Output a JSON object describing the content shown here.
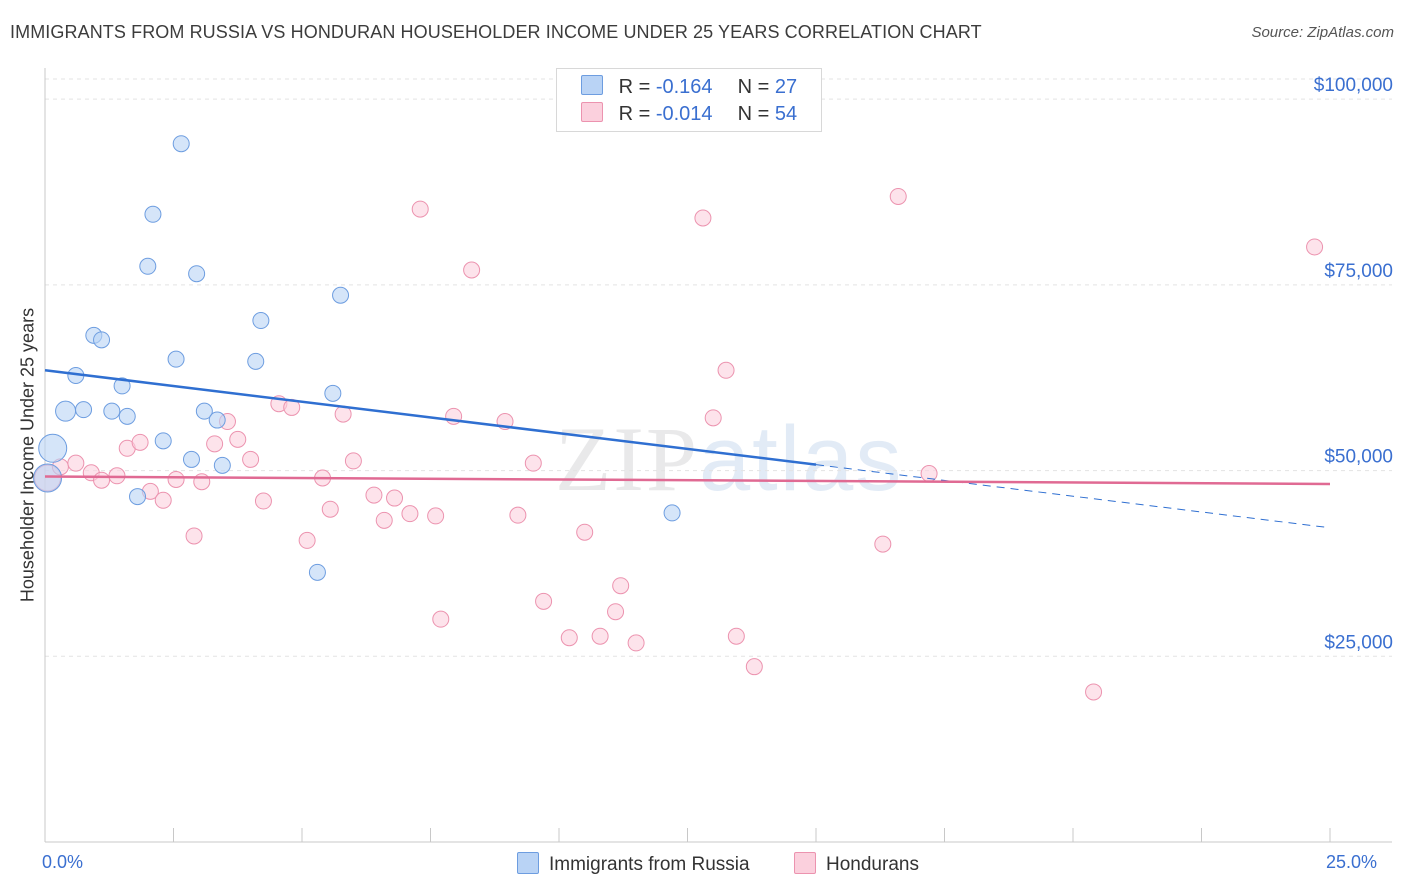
{
  "title": "IMMIGRANTS FROM RUSSIA VS HONDURAN HOUSEHOLDER INCOME UNDER 25 YEARS CORRELATION CHART",
  "source": "Source: ZipAtlas.com",
  "watermark": "ZIPatlas",
  "colors": {
    "russia_fill": "#b9d3f5",
    "russia_stroke": "#6d9de0",
    "russia_line": "#2f6fd1",
    "honduran_fill": "#fbd0dd",
    "honduran_stroke": "#ec93af",
    "honduran_line": "#e06a93",
    "axis_text": "#3a6fd0",
    "grid": "#e3e3e3"
  },
  "legend": {
    "russia": {
      "r_label": "R = ",
      "r_value": "-0.164",
      "n_label": "N = ",
      "n_value": "27"
    },
    "honduran": {
      "r_label": "R = ",
      "r_value": "-0.014",
      "n_label": "N = ",
      "n_value": "54"
    }
  },
  "bottom_legend": {
    "russia": "Immigrants from Russia",
    "honduran": "Hondurans"
  },
  "chart_data": {
    "type": "scatter",
    "title": "IMMIGRANTS FROM RUSSIA VS HONDURAN HOUSEHOLDER INCOME UNDER 25 YEARS CORRELATION CHART",
    "xlabel": "",
    "ylabel": "Householder Income Under 25 years",
    "xlim": [
      0,
      25
    ],
    "ylim": [
      0,
      105000
    ],
    "x_tick_labels": [
      "0.0%",
      "25.0%"
    ],
    "y_ticks": [
      25000,
      50000,
      75000,
      100000
    ],
    "y_tick_labels": [
      "$25,000",
      "$50,000",
      "$75,000",
      "$100,000"
    ],
    "grid": true,
    "legend_position": "top-center",
    "series": [
      {
        "name": "Immigrants from Russia",
        "points": [
          [
            0.05,
            49000
          ],
          [
            0.15,
            53000
          ],
          [
            0.4,
            58000
          ],
          [
            0.6,
            62800
          ],
          [
            0.75,
            58200
          ],
          [
            0.95,
            68200
          ],
          [
            1.1,
            67600
          ],
          [
            1.3,
            58000
          ],
          [
            1.5,
            61400
          ],
          [
            1.6,
            57300
          ],
          [
            1.8,
            46500
          ],
          [
            2.0,
            77500
          ],
          [
            2.1,
            84500
          ],
          [
            2.3,
            54000
          ],
          [
            2.55,
            65000
          ],
          [
            2.65,
            94000
          ],
          [
            2.85,
            51500
          ],
          [
            2.95,
            76500
          ],
          [
            3.1,
            58000
          ],
          [
            3.35,
            56800
          ],
          [
            3.45,
            50700
          ],
          [
            4.1,
            64700
          ],
          [
            4.2,
            70200
          ],
          [
            5.3,
            36300
          ],
          [
            5.6,
            60400
          ],
          [
            5.75,
            73600
          ],
          [
            12.2,
            44300
          ]
        ],
        "trend": {
          "x": [
            0,
            15
          ],
          "y": [
            63500,
            50800
          ]
        },
        "trend_dashed": {
          "x": [
            15,
            25
          ],
          "y": [
            50800,
            42300
          ]
        }
      },
      {
        "name": "Hondurans",
        "points": [
          [
            0.05,
            49000
          ],
          [
            0.3,
            50500
          ],
          [
            0.6,
            51000
          ],
          [
            0.9,
            49700
          ],
          [
            1.1,
            48700
          ],
          [
            1.4,
            49300
          ],
          [
            1.6,
            53000
          ],
          [
            1.85,
            53800
          ],
          [
            2.05,
            47200
          ],
          [
            2.3,
            46000
          ],
          [
            2.55,
            48800
          ],
          [
            2.9,
            41200
          ],
          [
            3.05,
            48500
          ],
          [
            3.3,
            53600
          ],
          [
            3.55,
            56600
          ],
          [
            3.75,
            54200
          ],
          [
            4.0,
            51500
          ],
          [
            4.25,
            45900
          ],
          [
            4.55,
            59000
          ],
          [
            4.8,
            58500
          ],
          [
            5.1,
            40600
          ],
          [
            5.4,
            49000
          ],
          [
            5.55,
            44800
          ],
          [
            5.8,
            57600
          ],
          [
            6.0,
            51300
          ],
          [
            6.4,
            46700
          ],
          [
            6.6,
            43300
          ],
          [
            6.8,
            46300
          ],
          [
            7.1,
            44200
          ],
          [
            7.3,
            85200
          ],
          [
            7.6,
            43900
          ],
          [
            7.7,
            30000
          ],
          [
            7.95,
            57300
          ],
          [
            8.3,
            77000
          ],
          [
            8.95,
            56600
          ],
          [
            9.2,
            44000
          ],
          [
            9.5,
            51000
          ],
          [
            9.7,
            32400
          ],
          [
            10.2,
            27500
          ],
          [
            10.5,
            41700
          ],
          [
            10.8,
            27700
          ],
          [
            11.1,
            31000
          ],
          [
            11.2,
            34500
          ],
          [
            11.5,
            26800
          ],
          [
            12.8,
            84000
          ],
          [
            13.0,
            57100
          ],
          [
            13.25,
            63500
          ],
          [
            13.45,
            27700
          ],
          [
            13.8,
            23600
          ],
          [
            16.3,
            40100
          ],
          [
            16.6,
            86900
          ],
          [
            17.2,
            49600
          ],
          [
            20.4,
            20200
          ],
          [
            24.7,
            80100
          ]
        ],
        "trend": {
          "x": [
            0,
            25
          ],
          "y": [
            49200,
            48200
          ]
        }
      }
    ]
  }
}
